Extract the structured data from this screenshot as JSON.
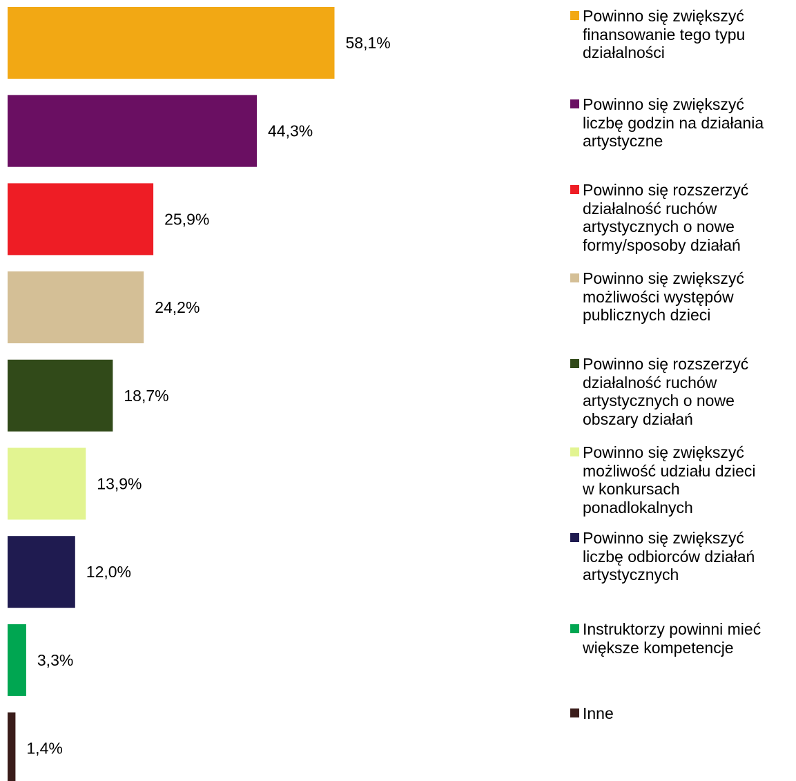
{
  "chart_data": {
    "type": "bar",
    "orientation": "horizontal",
    "xlim": [
      0,
      60
    ],
    "grid": false,
    "legend_position": "right",
    "categories": [
      "Powinno się zwiększyć finansowanie tego typu działalności",
      "Powinno się zwiększyć liczbę godzin na działania artystyczne",
      "Powinno się rozszerzyć działalność ruchów artystycznych o nowe formy/sposoby działań",
      "Powinno się zwiększyć możliwości występów publicznych dzieci",
      "Powinno się rozszerzyć działalność ruchów artystycznych o nowe obszary działań",
      "Powinno się zwiększyć możliwość udziału dzieci w konkursach ponadlokalnych",
      "Powinno się zwiększyć liczbę odbiorców działań artystycznych",
      "Instruktorzy powinni mieć większe kompetencje",
      "Inne"
    ],
    "values": [
      58.1,
      44.3,
      25.9,
      24.2,
      18.7,
      13.9,
      12.0,
      3.3,
      1.4
    ],
    "data_labels": [
      "58,1%",
      "44,3%",
      "25,9%",
      "24,2%",
      "18,7%",
      "13,9%",
      "12,0%",
      "3,3%",
      "1,4%"
    ],
    "colors": [
      "#F2A814",
      "#6A0F62",
      "#EE1D25",
      "#D4BF96",
      "#314A19",
      "#E2F491",
      "#1F1B50",
      "#00A651",
      "#3A1C1A"
    ]
  },
  "legend": {
    "items": [
      "Powinno się zwiększyć\nfinansowanie tego typu\ndziałalności",
      "Powinno się zwiększyć\nliczbę godzin na działania\nartystyczne",
      "Powinno się rozszerzyć\ndziałalność ruchów\nartystycznych o nowe\nformy/sposoby działań",
      "Powinno się zwiększyć\nmożliwości występów\npublicznych dzieci",
      "Powinno się rozszerzyć\ndziałalność ruchów\nartystycznych o nowe\nobszary działań",
      "Powinno się zwiększyć\nmożliwość udziału dzieci\nw konkursach\nponadlokalnych",
      "Powinno się zwiększyć\nliczbę odbiorców działań\nartystycznych",
      "Instruktorzy powinni mieć\nwiększe kompetencje",
      "Inne"
    ]
  }
}
